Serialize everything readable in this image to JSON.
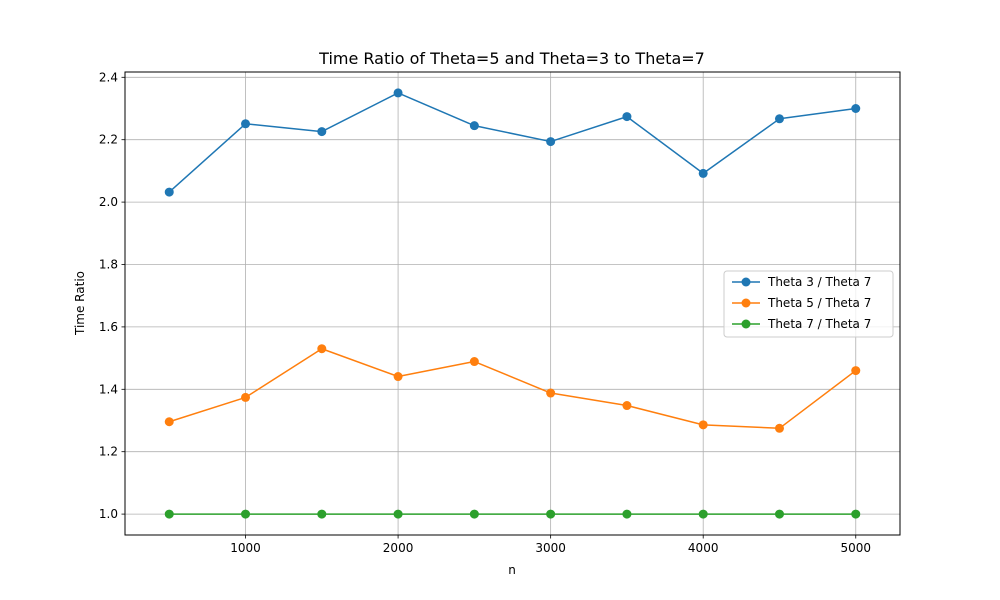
{
  "chart_data": {
    "type": "line",
    "title": "Time Ratio of Theta=5 and Theta=3 to Theta=7",
    "xlabel": "n",
    "ylabel": "Time Ratio",
    "x": [
      500,
      1000,
      1500,
      2000,
      2500,
      3000,
      3500,
      4000,
      4500,
      5000
    ],
    "xlim": [
      210,
      5290
    ],
    "ylim": [
      0.933,
      2.417
    ],
    "xticks": [
      1000,
      2000,
      3000,
      4000,
      5000
    ],
    "xtick_labels": [
      "1000",
      "2000",
      "3000",
      "4000",
      "5000"
    ],
    "yticks": [
      1.0,
      1.2,
      1.4,
      1.6,
      1.8,
      2.0,
      2.2,
      2.4
    ],
    "ytick_labels": [
      "1.0",
      "1.2",
      "1.4",
      "1.6",
      "1.8",
      "2.0",
      "2.2",
      "2.4"
    ],
    "grid": true,
    "legend_position": "center-right",
    "series": [
      {
        "name": "Theta 3 / Theta 7",
        "color": "#1f77b4",
        "values": [
          2.032,
          2.251,
          2.226,
          2.35,
          2.245,
          2.194,
          2.274,
          2.092,
          2.267,
          2.3
        ]
      },
      {
        "name": "Theta 5 / Theta 7",
        "color": "#ff7f0e",
        "values": [
          1.296,
          1.374,
          1.53,
          1.441,
          1.489,
          1.388,
          1.348,
          1.286,
          1.275,
          1.46
        ]
      },
      {
        "name": "Theta 7 / Theta 7",
        "color": "#2ca02c",
        "values": [
          1.0,
          1.0,
          1.0,
          1.0,
          1.0,
          1.0,
          1.0,
          1.0,
          1.0,
          1.0
        ]
      }
    ]
  }
}
